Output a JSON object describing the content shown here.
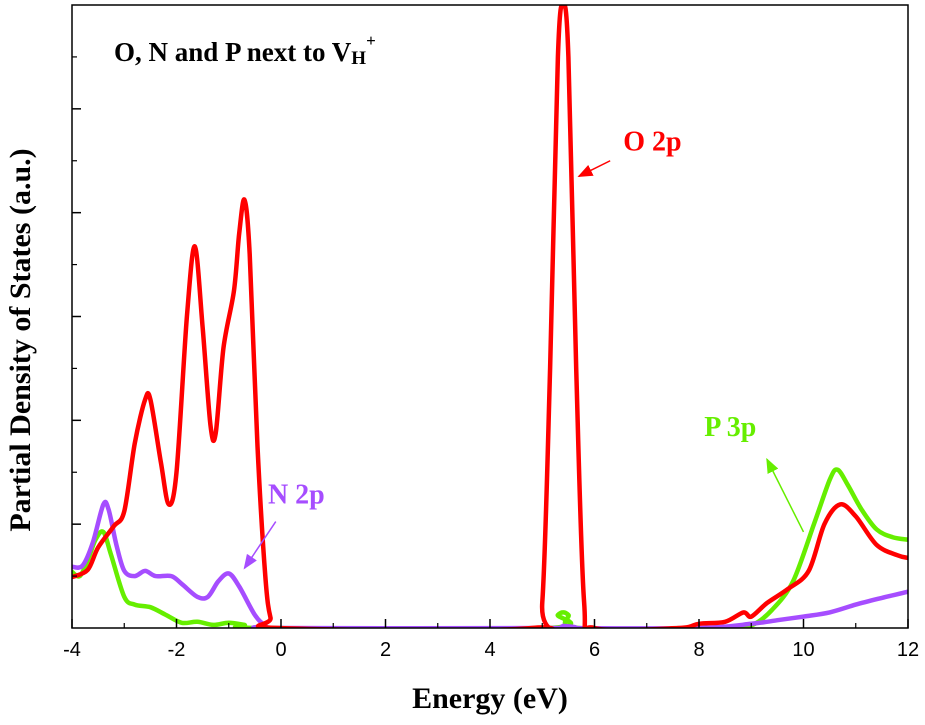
{
  "chart_data": {
    "type": "line",
    "title": "O, N and P next to V",
    "title_sub": "H",
    "title_sup": "+",
    "xlabel": "Energy (eV)",
    "ylabel": "Partial Density of States (a.u.)",
    "xlim": [
      -4,
      12
    ],
    "ylim": [
      0,
      1.2
    ],
    "x_ticks": [
      "-4",
      "-2",
      "0",
      "2",
      "4",
      "6",
      "8",
      "10",
      "12"
    ],
    "y_tick_labels_shown": false,
    "grid": false,
    "legend": "none",
    "series": [
      {
        "name": "O 2p",
        "color": "#ff0000",
        "points": [
          [
            -4.0,
            0.098
          ],
          [
            -3.7,
            0.112
          ],
          [
            -3.5,
            0.155
          ],
          [
            -3.2,
            0.196
          ],
          [
            -3.0,
            0.225
          ],
          [
            -2.8,
            0.355
          ],
          [
            -2.6,
            0.44
          ],
          [
            -2.5,
            0.44
          ],
          [
            -2.3,
            0.32
          ],
          [
            -2.15,
            0.238
          ],
          [
            -2.0,
            0.3
          ],
          [
            -1.8,
            0.6
          ],
          [
            -1.65,
            0.735
          ],
          [
            -1.5,
            0.58
          ],
          [
            -1.35,
            0.39
          ],
          [
            -1.25,
            0.375
          ],
          [
            -1.1,
            0.54
          ],
          [
            -0.9,
            0.65
          ],
          [
            -0.8,
            0.76
          ],
          [
            -0.7,
            0.825
          ],
          [
            -0.6,
            0.72
          ],
          [
            -0.45,
            0.35
          ],
          [
            -0.3,
            0.1
          ],
          [
            -0.2,
            0.02
          ],
          [
            -0.05,
            0.0
          ],
          [
            4.8,
            0.0
          ],
          [
            5.0,
            0.05
          ],
          [
            5.15,
            0.5
          ],
          [
            5.3,
            1.1
          ],
          [
            5.4,
            1.2
          ],
          [
            5.5,
            1.1
          ],
          [
            5.65,
            0.5
          ],
          [
            5.8,
            0.05
          ],
          [
            6.0,
            0.0
          ],
          [
            7.6,
            0.0
          ],
          [
            8.0,
            0.008
          ],
          [
            8.5,
            0.012
          ],
          [
            8.85,
            0.03
          ],
          [
            9.0,
            0.022
          ],
          [
            9.3,
            0.048
          ],
          [
            9.7,
            0.075
          ],
          [
            10.1,
            0.11
          ],
          [
            10.4,
            0.2
          ],
          [
            10.7,
            0.238
          ],
          [
            11.0,
            0.215
          ],
          [
            11.4,
            0.16
          ],
          [
            11.8,
            0.14
          ],
          [
            12.0,
            0.135
          ]
        ]
      },
      {
        "name": "N 2p",
        "color": "#a64dff",
        "points": [
          [
            -4.0,
            0.118
          ],
          [
            -3.8,
            0.12
          ],
          [
            -3.6,
            0.165
          ],
          [
            -3.4,
            0.238
          ],
          [
            -3.3,
            0.228
          ],
          [
            -3.15,
            0.16
          ],
          [
            -3.0,
            0.11
          ],
          [
            -2.8,
            0.1
          ],
          [
            -2.6,
            0.11
          ],
          [
            -2.4,
            0.1
          ],
          [
            -2.1,
            0.1
          ],
          [
            -1.9,
            0.085
          ],
          [
            -1.6,
            0.06
          ],
          [
            -1.4,
            0.06
          ],
          [
            -1.2,
            0.09
          ],
          [
            -1.0,
            0.105
          ],
          [
            -0.8,
            0.08
          ],
          [
            -0.5,
            0.025
          ],
          [
            -0.3,
            0.005
          ],
          [
            -0.1,
            0.0
          ],
          [
            5.2,
            0.0
          ],
          [
            5.4,
            0.004
          ],
          [
            5.6,
            0.0
          ],
          [
            8.0,
            0.0
          ],
          [
            9.0,
            0.008
          ],
          [
            9.5,
            0.015
          ],
          [
            10.0,
            0.022
          ],
          [
            10.5,
            0.03
          ],
          [
            11.0,
            0.045
          ],
          [
            11.5,
            0.058
          ],
          [
            12.0,
            0.07
          ]
        ]
      },
      {
        "name": "P 3p",
        "color": "#66ee00",
        "points": [
          [
            -4.0,
            0.108
          ],
          [
            -3.85,
            0.1
          ],
          [
            -3.7,
            0.13
          ],
          [
            -3.55,
            0.17
          ],
          [
            -3.4,
            0.185
          ],
          [
            -3.25,
            0.14
          ],
          [
            -3.0,
            0.06
          ],
          [
            -2.8,
            0.045
          ],
          [
            -2.5,
            0.04
          ],
          [
            -2.2,
            0.025
          ],
          [
            -1.9,
            0.01
          ],
          [
            -1.6,
            0.012
          ],
          [
            -1.3,
            0.006
          ],
          [
            -1.0,
            0.01
          ],
          [
            -0.7,
            0.006
          ],
          [
            -0.4,
            0.0
          ],
          [
            5.1,
            0.0
          ],
          [
            5.3,
            0.025
          ],
          [
            5.4,
            0.03
          ],
          [
            5.5,
            0.025
          ],
          [
            5.7,
            0.0
          ],
          [
            8.5,
            0.0
          ],
          [
            9.0,
            0.005
          ],
          [
            9.4,
            0.035
          ],
          [
            9.8,
            0.09
          ],
          [
            10.2,
            0.2
          ],
          [
            10.5,
            0.285
          ],
          [
            10.65,
            0.305
          ],
          [
            10.85,
            0.275
          ],
          [
            11.1,
            0.23
          ],
          [
            11.4,
            0.19
          ],
          [
            11.7,
            0.175
          ],
          [
            12.0,
            0.17
          ]
        ]
      }
    ],
    "annotations": [
      {
        "text": "O 2p",
        "color": "#ff0000",
        "x": 6.55,
        "y": 0.92,
        "arrow_from": [
          6.3,
          0.9
        ],
        "arrow_to": [
          5.7,
          0.87
        ]
      },
      {
        "text": "N 2p",
        "color": "#a64dff",
        "x": -0.25,
        "y": 0.24,
        "arrow_from": [
          -0.1,
          0.205
        ],
        "arrow_to": [
          -0.7,
          0.115
        ]
      },
      {
        "text": "P 3p",
        "color": "#66ee00",
        "x": 8.1,
        "y": 0.37,
        "arrow_from": [
          10.0,
          0.185
        ],
        "arrow_to": [
          9.3,
          0.325
        ]
      }
    ]
  }
}
